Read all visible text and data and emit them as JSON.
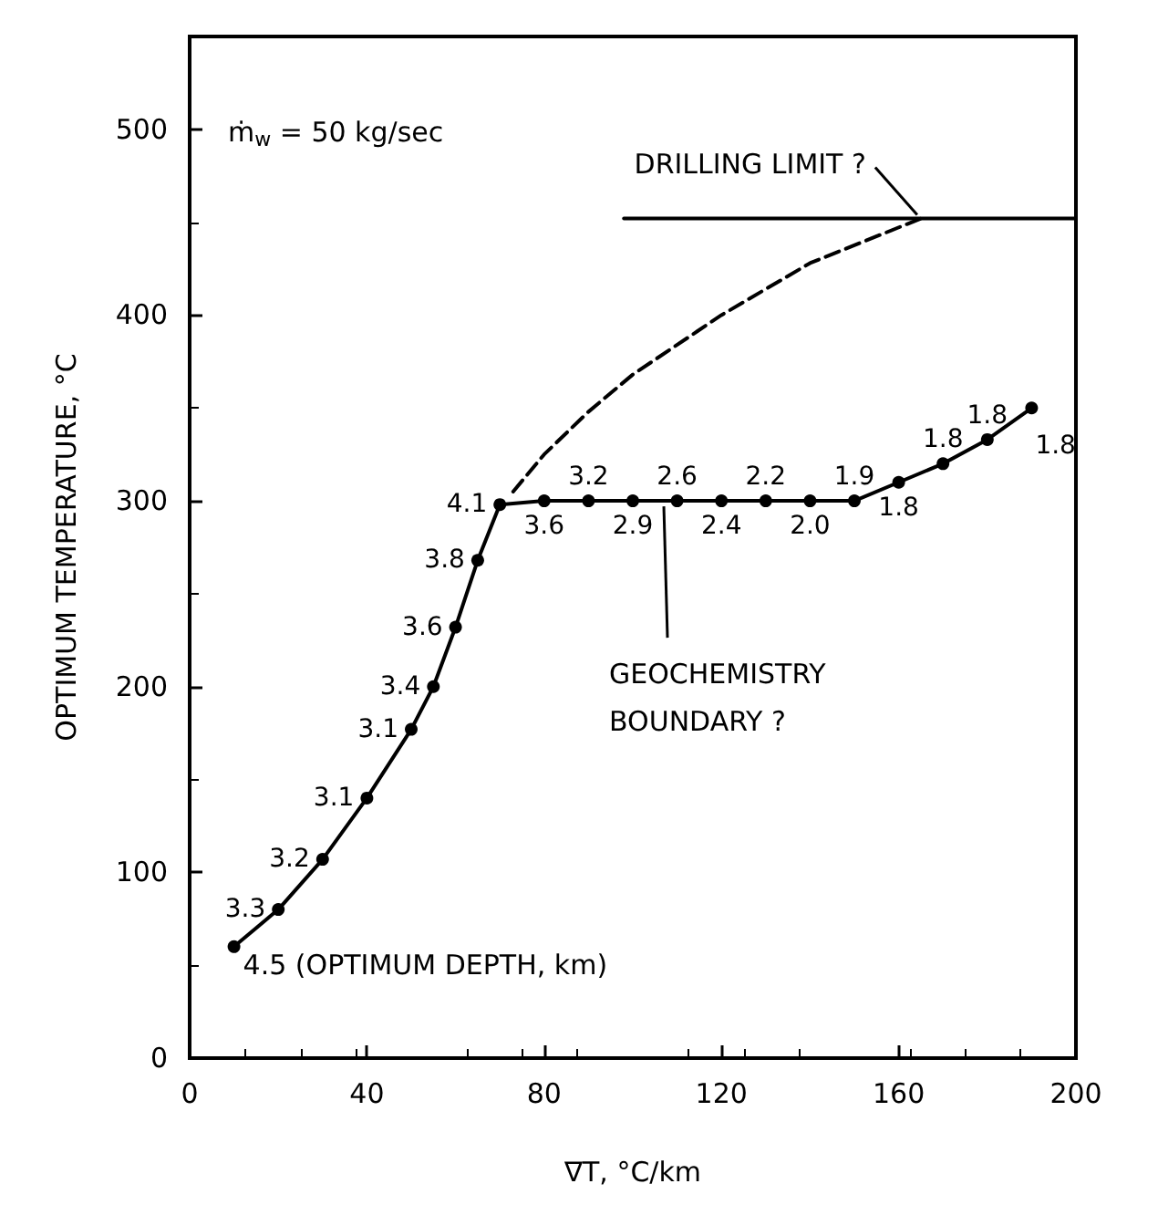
{
  "chart_data": {
    "type": "line",
    "xlabel": "∇T, °C/km",
    "ylabel": "OPTIMUM TEMPERATURE, °C",
    "xlim": [
      0,
      200
    ],
    "xticks": [
      0,
      40,
      80,
      120,
      160,
      200
    ],
    "ylim": [
      0,
      550
    ],
    "yticks": [
      0,
      100,
      200,
      300,
      400,
      500
    ],
    "series": [
      {
        "color": "#000000",
        "marker": "circle",
        "line_style": "solid",
        "x": [
          10,
          20,
          30,
          40,
          50,
          55,
          60,
          65,
          70,
          80,
          90,
          100,
          110,
          120,
          130,
          140,
          150,
          160,
          170,
          180,
          190
        ],
        "values": [
          60,
          80,
          107,
          140,
          177,
          200,
          232,
          268,
          298,
          300,
          300,
          300,
          300,
          300,
          300,
          300,
          300,
          310,
          320,
          333,
          350
        ]
      },
      {
        "color": "#000000",
        "marker": "none",
        "line_style": "dashed",
        "x": [
          73,
          80,
          90,
          100,
          120,
          140,
          165
        ],
        "values": [
          305,
          325,
          348,
          368,
          400,
          428,
          452
        ]
      },
      {
        "color": "#000000",
        "marker": "none",
        "line_style": "solid",
        "x": [
          98,
          200
        ],
        "values": [
          452,
          452
        ]
      }
    ],
    "annotations": [
      "ṁ$_{w}$ = 50 kg/sec",
      {
        "text": "4.5 (OPTIMUM DEPTH, km)",
        "x": 10,
        "y": 60
      },
      {
        "text": "DRILLING LIMIT ?",
        "x": 165,
        "y": 452
      },
      {
        "text": "GEOCHEMISTRY\nBOUNDARY ?",
        "x": 107,
        "y": 300
      },
      {
        "text": "3.3",
        "x": 20,
        "y": 80
      },
      {
        "text": "3.2",
        "x": 30,
        "y": 107
      },
      {
        "text": "3.1",
        "x": 40,
        "y": 140
      },
      {
        "text": "3.1",
        "x": 50,
        "y": 177
      },
      {
        "text": "3.4",
        "x": 55,
        "y": 200
      },
      {
        "text": "3.6",
        "x": 60,
        "y": 232
      },
      {
        "text": "3.8",
        "x": 65,
        "y": 268
      },
      {
        "text": "4.1",
        "x": 70,
        "y": 298
      },
      {
        "text": "3.6",
        "x": 80,
        "y": 300
      },
      {
        "text": "3.2",
        "x": 90,
        "y": 300
      },
      {
        "text": "2.9",
        "x": 100,
        "y": 300
      },
      {
        "text": "2.6",
        "x": 110,
        "y": 300
      },
      {
        "text": "2.4",
        "x": 120,
        "y": 300
      },
      {
        "text": "2.2",
        "x": 130,
        "y": 300
      },
      {
        "text": "2.0",
        "x": 140,
        "y": 300
      },
      {
        "text": "1.9",
        "x": 150,
        "y": 300
      },
      {
        "text": "1.8",
        "x": 160,
        "y": 310
      },
      {
        "text": "1.8",
        "x": 170,
        "y": 320
      },
      {
        "text": "1.8",
        "x": 180,
        "y": 333
      },
      {
        "text": "1.8",
        "x": 190,
        "y": 350
      }
    ]
  }
}
